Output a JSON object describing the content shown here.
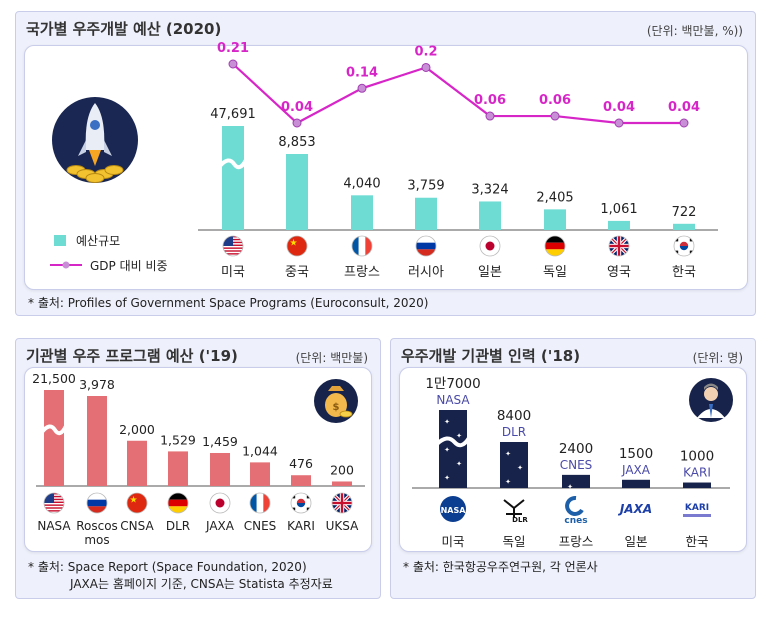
{
  "panel1": {
    "title": "국가별 우주개발 예산 (2020)",
    "unit": "(단위: 백만불, %))",
    "legend": {
      "bar": "예산규모",
      "line": "GDP 대비 비중"
    },
    "source": "* 출처: Profiles of Government Space Programs (Euroconsult, 2020)"
  },
  "panel2": {
    "title": "기관별 우주 프로그램 예산 ('19)",
    "unit": "(단위: 백만불)",
    "source_line1": "* 출처: Space Report (Space Foundation, 2020)",
    "source_line2": "JAXA는 홈페이지 기준, CNSA는 Statista 추정자료"
  },
  "panel3": {
    "title": "우주개발 기관별 인력 ('18)",
    "unit": "(단위: 명)",
    "source": "* 출처: 한국항공우주연구원, 각 언론사"
  },
  "colors": {
    "teal": "#6fdcd4",
    "pink": "#e46f74",
    "navy": "#17234a",
    "magenta": "#d726c8",
    "title": "#333333"
  },
  "chart_data": [
    {
      "type": "bar",
      "categories": [
        "미국",
        "중국",
        "프랑스",
        "러시아",
        "일본",
        "독일",
        "영국",
        "한국"
      ],
      "values": [
        47691,
        8853,
        4040,
        3759,
        3324,
        2405,
        1061,
        722
      ],
      "value_labels": [
        "47,691",
        "8,853",
        "4,040",
        "3,759",
        "3,324",
        "2,405",
        "1,061",
        "722"
      ],
      "line_values": [
        0.21,
        0.04,
        0.14,
        0.2,
        0.06,
        0.06,
        0.04,
        0.04
      ],
      "line_labels": [
        "0.21",
        "0.04",
        "0.14",
        "0.2",
        "0.06",
        "0.06",
        "0.04",
        "0.04"
      ],
      "axis_break_on": [
        "미국"
      ],
      "flags": [
        "us",
        "cn",
        "fr",
        "ru",
        "jp",
        "de",
        "uk",
        "kr"
      ]
    },
    {
      "type": "bar",
      "categories": [
        "NASA",
        "Roscos mos",
        "CNSA",
        "DLR",
        "JAXA",
        "CNES",
        "KARI",
        "UKSA"
      ],
      "values": [
        21500,
        3978,
        2000,
        1529,
        1459,
        1044,
        476,
        200
      ],
      "value_labels": [
        "21,500",
        "3,978",
        "2,000",
        "1,529",
        "1,459",
        "1,044",
        "476",
        "200"
      ],
      "axis_break_on": [
        "NASA"
      ],
      "flags": [
        "us",
        "ru",
        "cn",
        "de",
        "jp",
        "fr",
        "kr",
        "uk"
      ]
    },
    {
      "type": "bar",
      "categories": [
        "미국",
        "독일",
        "프랑스",
        "일본",
        "한국"
      ],
      "agencies": [
        "NASA",
        "DLR",
        "CNES",
        "JAXA",
        "KARI"
      ],
      "values": [
        17000,
        8400,
        2400,
        1500,
        1000
      ],
      "value_labels": [
        "1만7000",
        "8400",
        "2400",
        "1500",
        "1000"
      ],
      "axis_break_on": [
        "미국"
      ],
      "logos": [
        "NASA",
        "DLR",
        "cnes",
        "JAXA",
        "KARI"
      ]
    }
  ]
}
